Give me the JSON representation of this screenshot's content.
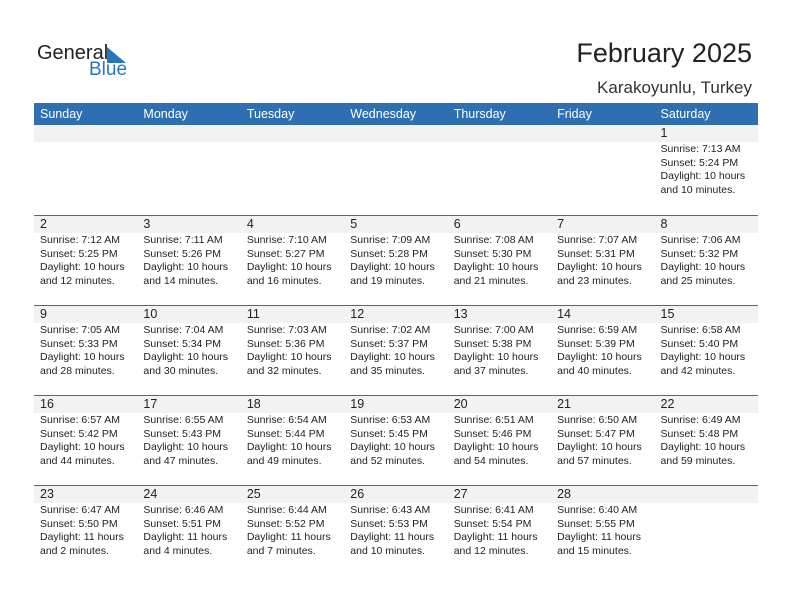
{
  "logo": {
    "general": "General",
    "blue": "Blue"
  },
  "title": "February 2025",
  "location": "Karakoyunlu, Turkey",
  "accent": "#2e6fb2",
  "weekdays": [
    "Sunday",
    "Monday",
    "Tuesday",
    "Wednesday",
    "Thursday",
    "Friday",
    "Saturday"
  ],
  "weeks": [
    [
      null,
      null,
      null,
      null,
      null,
      null,
      {
        "day": "1",
        "sunrise": "Sunrise: 7:13 AM",
        "sunset": "Sunset: 5:24 PM",
        "daylight": "Daylight: 10 hours",
        "minutes": "and 10 minutes."
      }
    ],
    [
      {
        "day": "2",
        "sunrise": "Sunrise: 7:12 AM",
        "sunset": "Sunset: 5:25 PM",
        "daylight": "Daylight: 10 hours",
        "minutes": "and 12 minutes."
      },
      {
        "day": "3",
        "sunrise": "Sunrise: 7:11 AM",
        "sunset": "Sunset: 5:26 PM",
        "daylight": "Daylight: 10 hours",
        "minutes": "and 14 minutes."
      },
      {
        "day": "4",
        "sunrise": "Sunrise: 7:10 AM",
        "sunset": "Sunset: 5:27 PM",
        "daylight": "Daylight: 10 hours",
        "minutes": "and 16 minutes."
      },
      {
        "day": "5",
        "sunrise": "Sunrise: 7:09 AM",
        "sunset": "Sunset: 5:28 PM",
        "daylight": "Daylight: 10 hours",
        "minutes": "and 19 minutes."
      },
      {
        "day": "6",
        "sunrise": "Sunrise: 7:08 AM",
        "sunset": "Sunset: 5:30 PM",
        "daylight": "Daylight: 10 hours",
        "minutes": "and 21 minutes."
      },
      {
        "day": "7",
        "sunrise": "Sunrise: 7:07 AM",
        "sunset": "Sunset: 5:31 PM",
        "daylight": "Daylight: 10 hours",
        "minutes": "and 23 minutes."
      },
      {
        "day": "8",
        "sunrise": "Sunrise: 7:06 AM",
        "sunset": "Sunset: 5:32 PM",
        "daylight": "Daylight: 10 hours",
        "minutes": "and 25 minutes."
      }
    ],
    [
      {
        "day": "9",
        "sunrise": "Sunrise: 7:05 AM",
        "sunset": "Sunset: 5:33 PM",
        "daylight": "Daylight: 10 hours",
        "minutes": "and 28 minutes."
      },
      {
        "day": "10",
        "sunrise": "Sunrise: 7:04 AM",
        "sunset": "Sunset: 5:34 PM",
        "daylight": "Daylight: 10 hours",
        "minutes": "and 30 minutes."
      },
      {
        "day": "11",
        "sunrise": "Sunrise: 7:03 AM",
        "sunset": "Sunset: 5:36 PM",
        "daylight": "Daylight: 10 hours",
        "minutes": "and 32 minutes."
      },
      {
        "day": "12",
        "sunrise": "Sunrise: 7:02 AM",
        "sunset": "Sunset: 5:37 PM",
        "daylight": "Daylight: 10 hours",
        "minutes": "and 35 minutes."
      },
      {
        "day": "13",
        "sunrise": "Sunrise: 7:00 AM",
        "sunset": "Sunset: 5:38 PM",
        "daylight": "Daylight: 10 hours",
        "minutes": "and 37 minutes."
      },
      {
        "day": "14",
        "sunrise": "Sunrise: 6:59 AM",
        "sunset": "Sunset: 5:39 PM",
        "daylight": "Daylight: 10 hours",
        "minutes": "and 40 minutes."
      },
      {
        "day": "15",
        "sunrise": "Sunrise: 6:58 AM",
        "sunset": "Sunset: 5:40 PM",
        "daylight": "Daylight: 10 hours",
        "minutes": "and 42 minutes."
      }
    ],
    [
      {
        "day": "16",
        "sunrise": "Sunrise: 6:57 AM",
        "sunset": "Sunset: 5:42 PM",
        "daylight": "Daylight: 10 hours",
        "minutes": "and 44 minutes."
      },
      {
        "day": "17",
        "sunrise": "Sunrise: 6:55 AM",
        "sunset": "Sunset: 5:43 PM",
        "daylight": "Daylight: 10 hours",
        "minutes": "and 47 minutes."
      },
      {
        "day": "18",
        "sunrise": "Sunrise: 6:54 AM",
        "sunset": "Sunset: 5:44 PM",
        "daylight": "Daylight: 10 hours",
        "minutes": "and 49 minutes."
      },
      {
        "day": "19",
        "sunrise": "Sunrise: 6:53 AM",
        "sunset": "Sunset: 5:45 PM",
        "daylight": "Daylight: 10 hours",
        "minutes": "and 52 minutes."
      },
      {
        "day": "20",
        "sunrise": "Sunrise: 6:51 AM",
        "sunset": "Sunset: 5:46 PM",
        "daylight": "Daylight: 10 hours",
        "minutes": "and 54 minutes."
      },
      {
        "day": "21",
        "sunrise": "Sunrise: 6:50 AM",
        "sunset": "Sunset: 5:47 PM",
        "daylight": "Daylight: 10 hours",
        "minutes": "and 57 minutes."
      },
      {
        "day": "22",
        "sunrise": "Sunrise: 6:49 AM",
        "sunset": "Sunset: 5:48 PM",
        "daylight": "Daylight: 10 hours",
        "minutes": "and 59 minutes."
      }
    ],
    [
      {
        "day": "23",
        "sunrise": "Sunrise: 6:47 AM",
        "sunset": "Sunset: 5:50 PM",
        "daylight": "Daylight: 11 hours",
        "minutes": "and 2 minutes."
      },
      {
        "day": "24",
        "sunrise": "Sunrise: 6:46 AM",
        "sunset": "Sunset: 5:51 PM",
        "daylight": "Daylight: 11 hours",
        "minutes": "and 4 minutes."
      },
      {
        "day": "25",
        "sunrise": "Sunrise: 6:44 AM",
        "sunset": "Sunset: 5:52 PM",
        "daylight": "Daylight: 11 hours",
        "minutes": "and 7 minutes."
      },
      {
        "day": "26",
        "sunrise": "Sunrise: 6:43 AM",
        "sunset": "Sunset: 5:53 PM",
        "daylight": "Daylight: 11 hours",
        "minutes": "and 10 minutes."
      },
      {
        "day": "27",
        "sunrise": "Sunrise: 6:41 AM",
        "sunset": "Sunset: 5:54 PM",
        "daylight": "Daylight: 11 hours",
        "minutes": "and 12 minutes."
      },
      {
        "day": "28",
        "sunrise": "Sunrise: 6:40 AM",
        "sunset": "Sunset: 5:55 PM",
        "daylight": "Daylight: 11 hours",
        "minutes": "and 15 minutes."
      },
      null
    ]
  ]
}
